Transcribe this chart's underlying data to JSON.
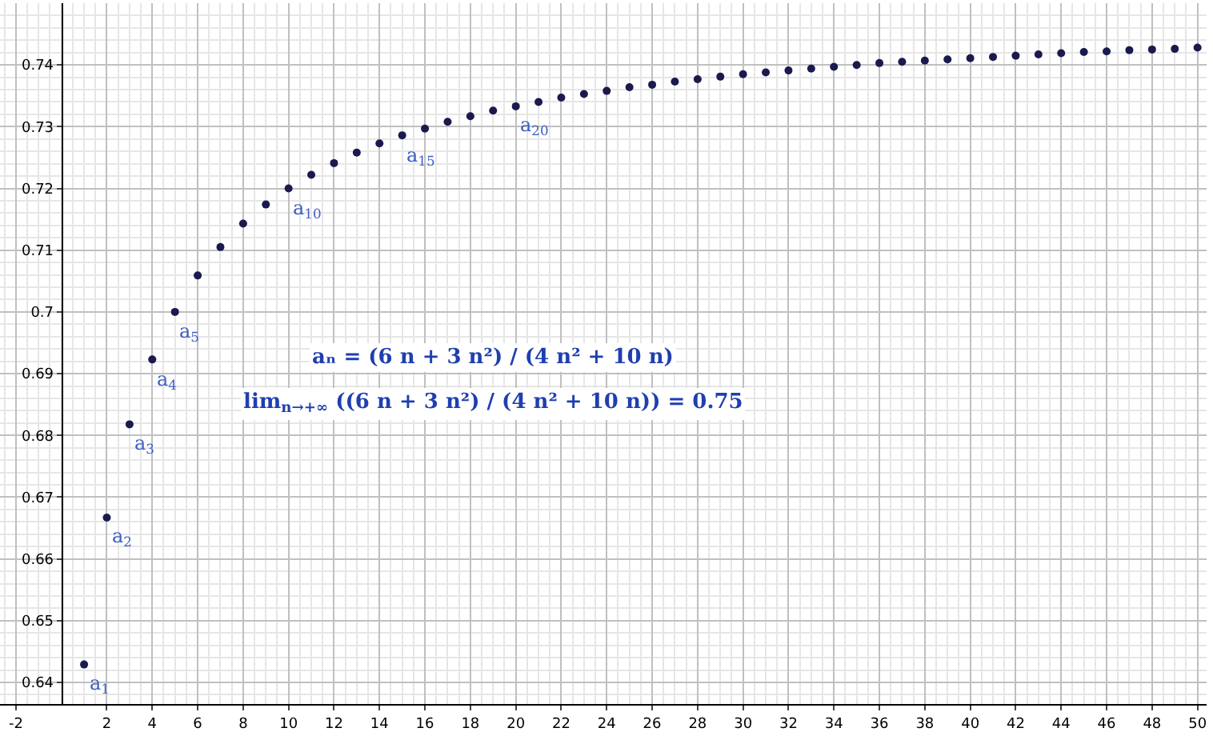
{
  "chart_data": {
    "type": "scatter",
    "x": [
      1,
      2,
      3,
      4,
      5,
      6,
      7,
      8,
      9,
      10,
      11,
      12,
      13,
      14,
      15,
      16,
      17,
      18,
      19,
      20,
      21,
      22,
      23,
      24,
      25,
      26,
      27,
      28,
      29,
      30,
      31,
      32,
      33,
      34,
      35,
      36,
      37,
      38,
      39,
      40,
      41,
      42,
      43,
      44,
      45,
      46,
      47,
      48,
      49,
      50
    ],
    "series": [
      {
        "color": "#1a1a4e",
        "values": [
          0.6429,
          0.6667,
          0.6818,
          0.6923,
          0.7,
          0.7059,
          0.7105,
          0.7143,
          0.7174,
          0.72,
          0.7222,
          0.7241,
          0.7258,
          0.7273,
          0.7286,
          0.7297,
          0.7308,
          0.7317,
          0.7326,
          0.7333,
          0.734,
          0.7347,
          0.7353,
          0.7358,
          0.7364,
          0.7368,
          0.7373,
          0.7377,
          0.7381,
          0.7385,
          0.7388,
          0.7391,
          0.7394,
          0.7397,
          0.74,
          0.7403,
          0.7405,
          0.7407,
          0.7409,
          0.7411,
          0.7413,
          0.7415,
          0.7417,
          0.7419,
          0.7421,
          0.7422,
          0.7424,
          0.7425,
          0.7426,
          0.7428
        ]
      }
    ],
    "marker": "circle",
    "grid": true,
    "legend": false,
    "xlim": [
      -2.7,
      50.4
    ],
    "ylim": [
      0.6365,
      0.75
    ],
    "xticks": [
      -2,
      2,
      4,
      6,
      8,
      10,
      12,
      14,
      16,
      18,
      20,
      22,
      24,
      26,
      28,
      30,
      32,
      34,
      36,
      38,
      40,
      42,
      44,
      46,
      48,
      50
    ],
    "yticks": [
      0.64,
      0.65,
      0.66,
      0.67,
      0.68,
      0.69,
      {
        "value": 0.7,
        "label": "0.7"
      },
      0.71,
      0.72,
      0.73,
      0.74
    ],
    "annotations": [
      {
        "text": "a$_{1}$",
        "x": 1,
        "y": 0.6429
      },
      {
        "text": "a$_{2}$",
        "x": 2,
        "y": 0.6667
      },
      {
        "text": "a$_{3}$",
        "x": 3,
        "y": 0.6818
      },
      {
        "text": "a$_{4}$",
        "x": 4,
        "y": 0.6923
      },
      {
        "text": "a$_{5}$",
        "x": 5,
        "y": 0.7
      },
      {
        "text": "a$_{10}$",
        "x": 10,
        "y": 0.72
      },
      {
        "text": "a$_{15}$",
        "x": 15,
        "y": 0.7286
      },
      {
        "text": "a$_{20}$",
        "x": 20,
        "y": 0.7333
      },
      "aₙ = (6 n + 3 n²) / (4 n² + 10 n)",
      "lim$_{n→+∞}$ ((6 n + 3 n²) / (4 n² + 10 n)) = 0.75"
    ]
  }
}
